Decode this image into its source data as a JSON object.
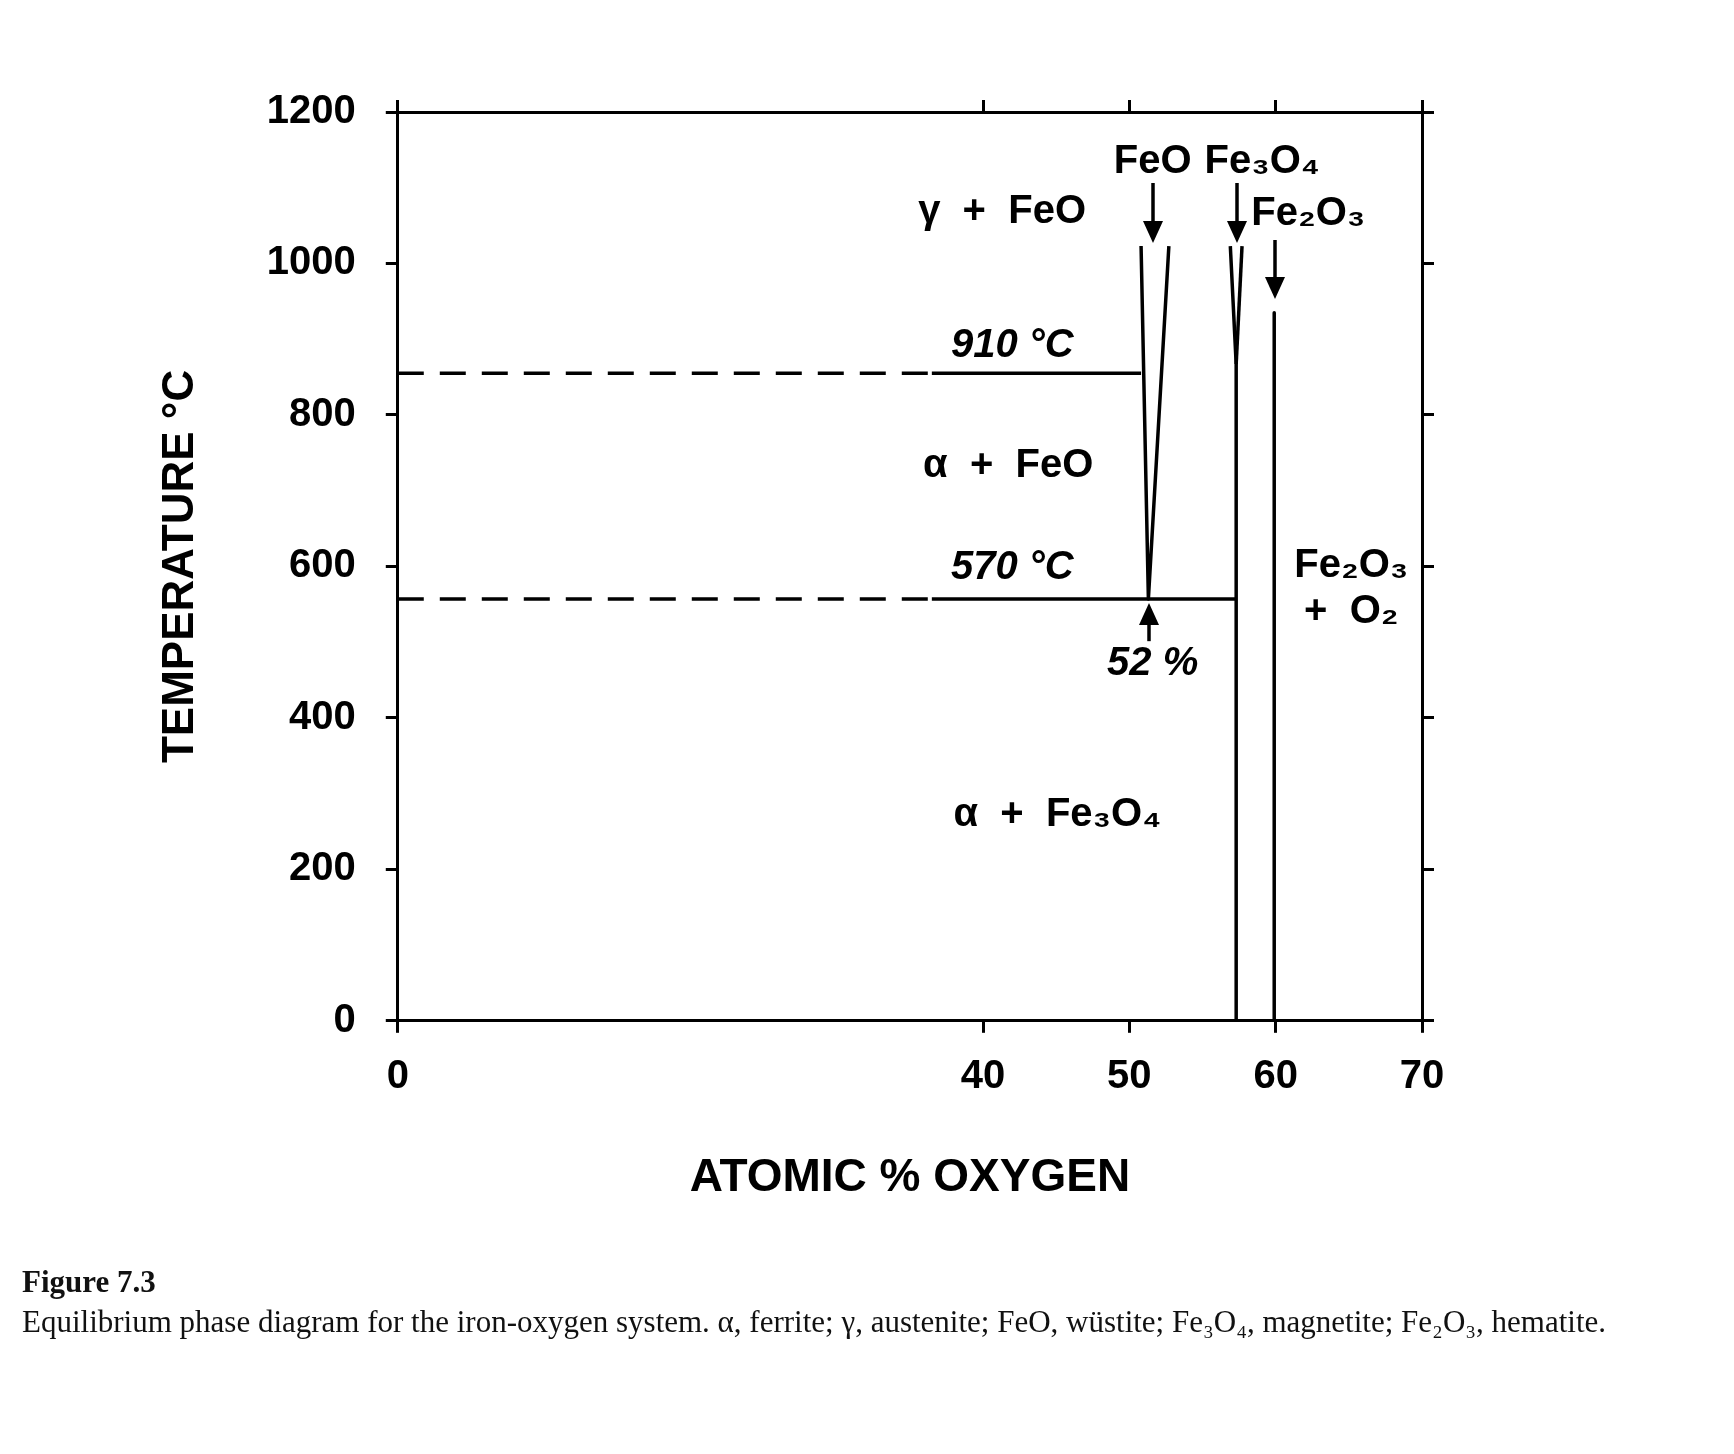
{
  "chart_data": {
    "type": "line",
    "xlabel": "ATOMIC % OXYGEN",
    "ylabel": "TEMPERATURE °C",
    "xlim": [
      0,
      70
    ],
    "xticks": [
      0,
      40,
      50,
      60,
      70
    ],
    "ylim": [
      0,
      1200
    ],
    "yticks": [
      0,
      200,
      400,
      600,
      800,
      1000,
      1200
    ],
    "grid": false,
    "legend": false,
    "marker": "none",
    "series": [
      {
        "color": "#000000",
        "line_style": "dashed",
        "x": [
          0,
          36.5
        ],
        "values": [
          855,
          855
        ]
      },
      {
        "color": "#000000",
        "line_style": "solid",
        "x": [
          36.5,
          50.8
        ],
        "values": [
          855,
          855
        ]
      },
      {
        "color": "#000000",
        "line_style": "dashed",
        "x": [
          0,
          36.5
        ],
        "values": [
          557,
          557
        ]
      },
      {
        "color": "#000000",
        "line_style": "solid",
        "x": [
          36.5,
          57.3
        ],
        "values": [
          557,
          557
        ]
      },
      {
        "color": "#000000",
        "line_style": "solid",
        "x": [
          50.8,
          51.3,
          52.7
        ],
        "values": [
          1023,
          557,
          1023
        ]
      },
      {
        "color": "#000000",
        "line_style": "solid",
        "x": [
          56.9,
          57.3,
          57.3
        ],
        "values": [
          1023,
          867,
          0
        ]
      },
      {
        "color": "#000000",
        "line_style": "solid",
        "x": [
          57.7,
          57.3
        ],
        "values": [
          1023,
          867
        ]
      },
      {
        "color": "#000000",
        "line_style": "solid",
        "x": [
          59.9,
          59.9
        ],
        "values": [
          935,
          0
        ]
      }
    ],
    "annotations": [
      "FeO",
      "Fe₃O₄",
      "Fe₂O₃",
      "52 %",
      "γ  +  FeO",
      "910 °C",
      "α  +  FeO",
      "570 °C",
      "α  +  Fe₃O₄",
      "Fe₂O₃\n+  O₂",
      "Figure 7.3",
      "Equilibrium phase diagram for the iron-oxygen system. α, ferrite; γ, austenite; FeO, wüstite; Fe₃O₄, magnetite; Fe₂O₃, hematite."
    ]
  }
}
